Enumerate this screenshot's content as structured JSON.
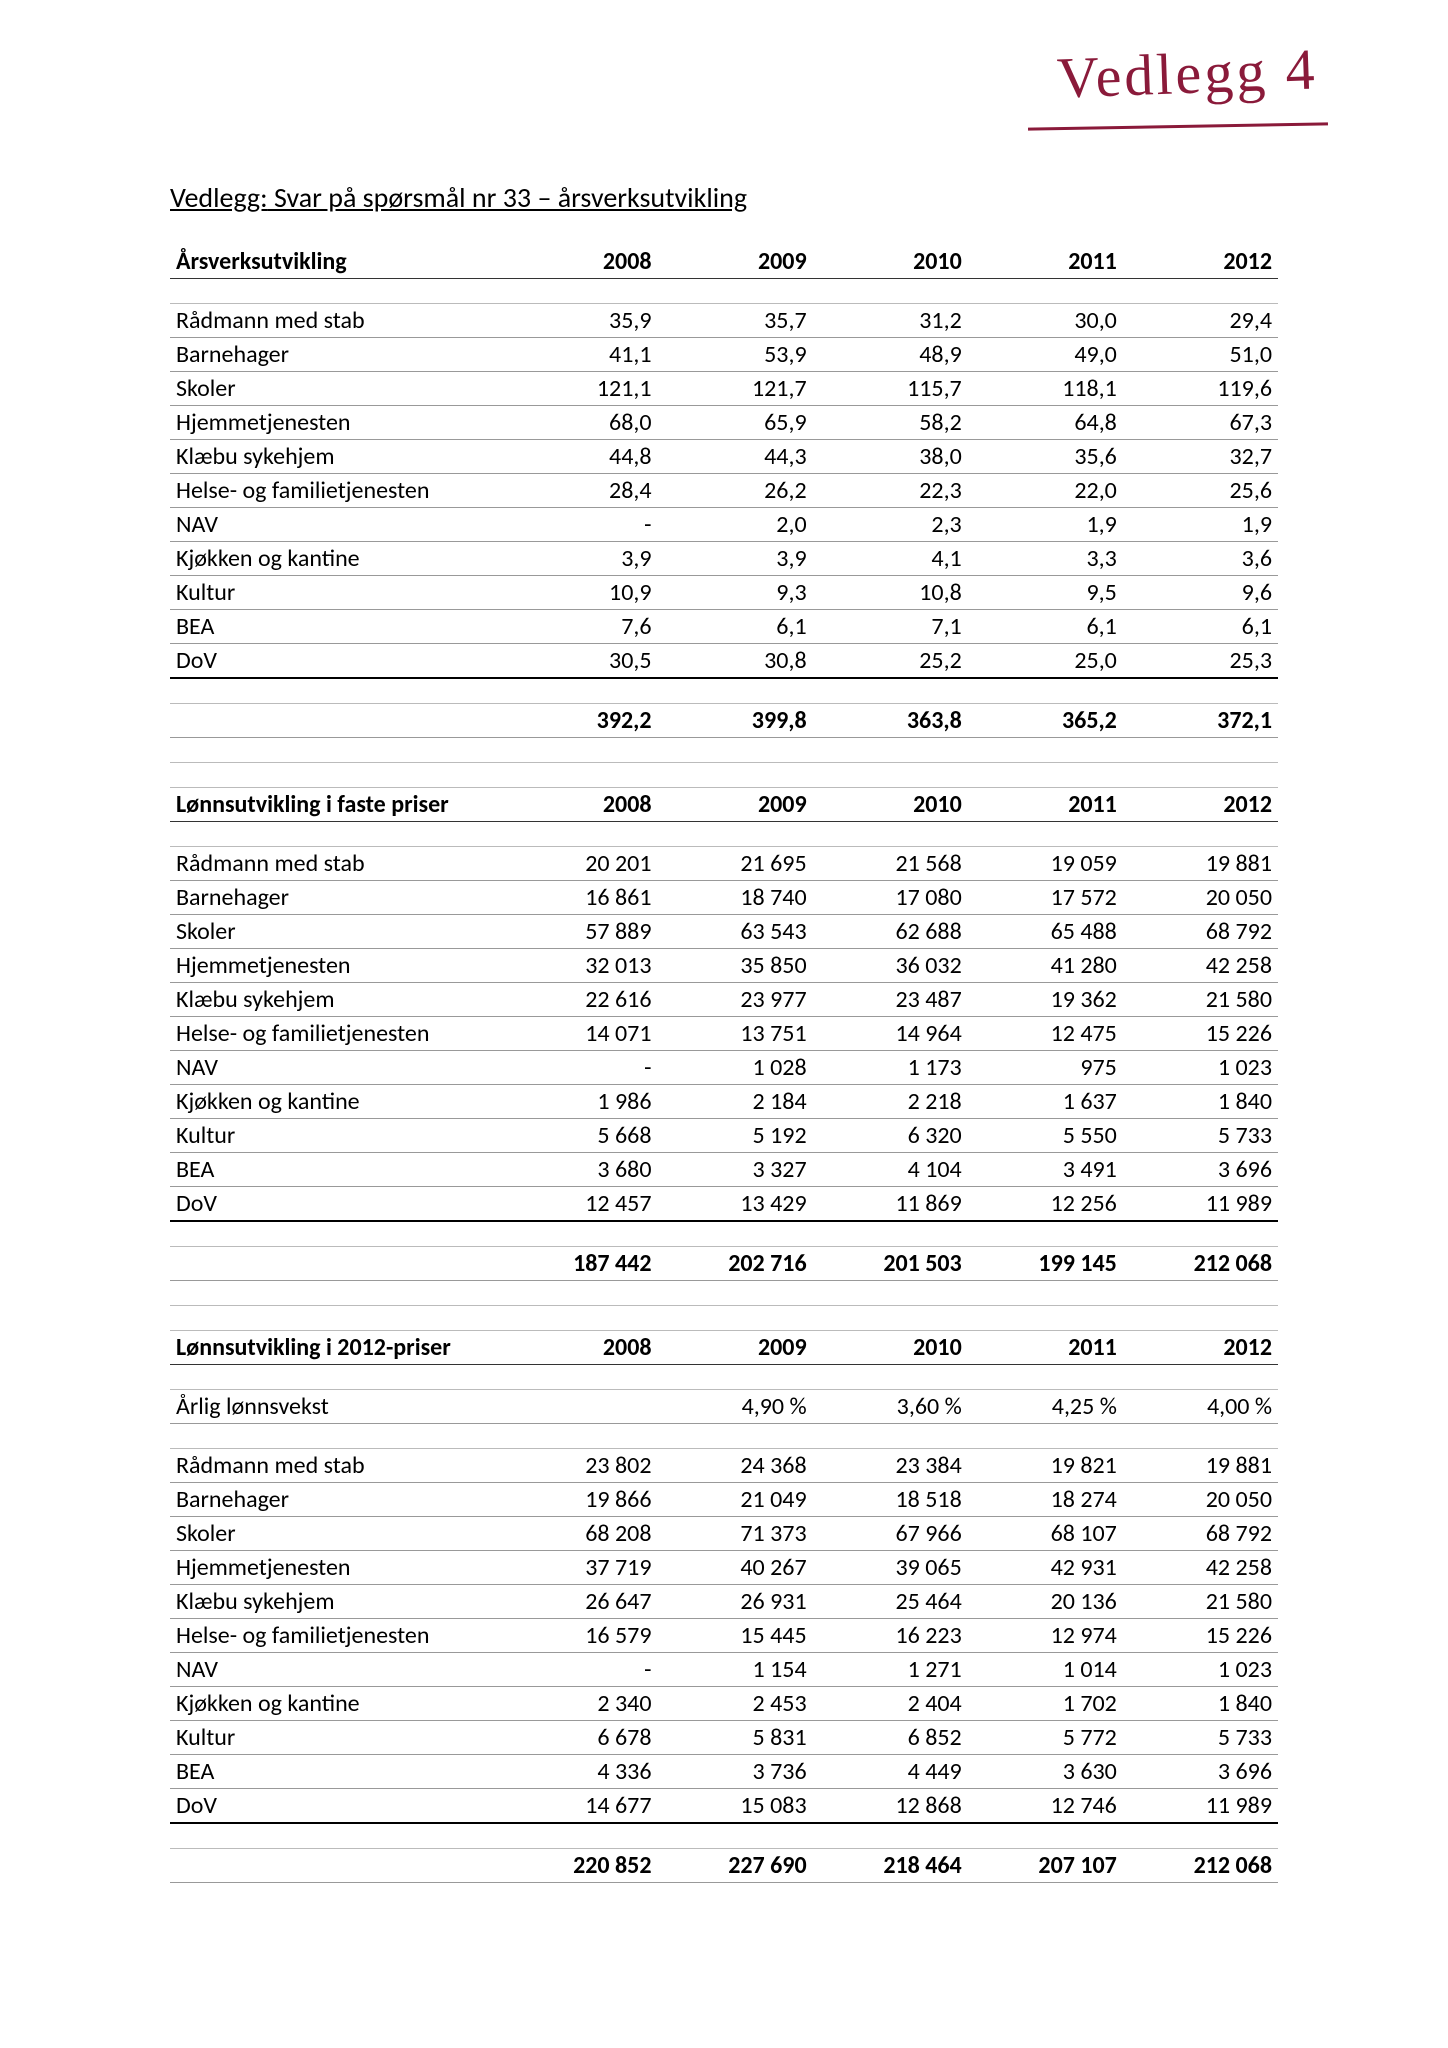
{
  "handwriting": "Vedlegg 4",
  "title_prefix": "Vedlegg:",
  "title_rest": " Svar på spørsmål nr 33 – årsverksutvikling",
  "years": [
    "2008",
    "2009",
    "2010",
    "2011",
    "2012"
  ],
  "section1": {
    "header": "Årsverksutvikling",
    "rows": [
      {
        "label": "Rådmann med stab",
        "v": [
          "35,9",
          "35,7",
          "31,2",
          "30,0",
          "29,4"
        ]
      },
      {
        "label": "Barnehager",
        "v": [
          "41,1",
          "53,9",
          "48,9",
          "49,0",
          "51,0"
        ]
      },
      {
        "label": "Skoler",
        "v": [
          "121,1",
          "121,7",
          "115,7",
          "118,1",
          "119,6"
        ]
      },
      {
        "label": "Hjemmetjenesten",
        "v": [
          "68,0",
          "65,9",
          "58,2",
          "64,8",
          "67,3"
        ]
      },
      {
        "label": "Klæbu sykehjem",
        "v": [
          "44,8",
          "44,3",
          "38,0",
          "35,6",
          "32,7"
        ]
      },
      {
        "label": "Helse- og familietjenesten",
        "v": [
          "28,4",
          "26,2",
          "22,3",
          "22,0",
          "25,6"
        ]
      },
      {
        "label": "NAV",
        "v": [
          "-",
          "2,0",
          "2,3",
          "1,9",
          "1,9"
        ]
      },
      {
        "label": "Kjøkken og kantine",
        "v": [
          "3,9",
          "3,9",
          "4,1",
          "3,3",
          "3,6"
        ]
      },
      {
        "label": "Kultur",
        "v": [
          "10,9",
          "9,3",
          "10,8",
          "9,5",
          "9,6"
        ]
      },
      {
        "label": "BEA",
        "v": [
          "7,6",
          "6,1",
          "7,1",
          "6,1",
          "6,1"
        ]
      },
      {
        "label": "DoV",
        "v": [
          "30,5",
          "30,8",
          "25,2",
          "25,0",
          "25,3"
        ]
      }
    ],
    "total": [
      "392,2",
      "399,8",
      "363,8",
      "365,2",
      "372,1"
    ]
  },
  "section2": {
    "header": "Lønnsutvikling i faste priser",
    "rows": [
      {
        "label": "Rådmann med stab",
        "v": [
          "20 201",
          "21 695",
          "21 568",
          "19 059",
          "19 881"
        ]
      },
      {
        "label": "Barnehager",
        "v": [
          "16 861",
          "18 740",
          "17 080",
          "17 572",
          "20 050"
        ]
      },
      {
        "label": "Skoler",
        "v": [
          "57 889",
          "63 543",
          "62 688",
          "65 488",
          "68 792"
        ]
      },
      {
        "label": "Hjemmetjenesten",
        "v": [
          "32 013",
          "35 850",
          "36 032",
          "41 280",
          "42 258"
        ]
      },
      {
        "label": "Klæbu sykehjem",
        "v": [
          "22 616",
          "23 977",
          "23 487",
          "19 362",
          "21 580"
        ]
      },
      {
        "label": "Helse- og familietjenesten",
        "v": [
          "14 071",
          "13 751",
          "14 964",
          "12 475",
          "15 226"
        ]
      },
      {
        "label": "NAV",
        "v": [
          "-",
          "1 028",
          "1 173",
          "975",
          "1 023"
        ]
      },
      {
        "label": "Kjøkken og kantine",
        "v": [
          "1 986",
          "2 184",
          "2 218",
          "1 637",
          "1 840"
        ]
      },
      {
        "label": "Kultur",
        "v": [
          "5 668",
          "5 192",
          "6 320",
          "5 550",
          "5 733"
        ]
      },
      {
        "label": "BEA",
        "v": [
          "3 680",
          "3 327",
          "4 104",
          "3 491",
          "3 696"
        ]
      },
      {
        "label": "DoV",
        "v": [
          "12 457",
          "13 429",
          "11 869",
          "12 256",
          "11 989"
        ]
      }
    ],
    "total": [
      "187 442",
      "202 716",
      "201 503",
      "199 145",
      "212 068"
    ]
  },
  "section3": {
    "header": "Lønnsutvikling i 2012-priser",
    "growth_label": "Årlig lønnsvekst",
    "growth": [
      "",
      "4,90 %",
      "3,60 %",
      "4,25 %",
      "4,00 %"
    ],
    "rows": [
      {
        "label": "Rådmann med stab",
        "v": [
          "23 802",
          "24 368",
          "23 384",
          "19 821",
          "19 881"
        ]
      },
      {
        "label": "Barnehager",
        "v": [
          "19 866",
          "21 049",
          "18 518",
          "18 274",
          "20 050"
        ]
      },
      {
        "label": "Skoler",
        "v": [
          "68 208",
          "71 373",
          "67 966",
          "68 107",
          "68 792"
        ]
      },
      {
        "label": "Hjemmetjenesten",
        "v": [
          "37 719",
          "40 267",
          "39 065",
          "42 931",
          "42 258"
        ]
      },
      {
        "label": "Klæbu sykehjem",
        "v": [
          "26 647",
          "26 931",
          "25 464",
          "20 136",
          "21 580"
        ]
      },
      {
        "label": "Helse- og familietjenesten",
        "v": [
          "16 579",
          "15 445",
          "16 223",
          "12 974",
          "15 226"
        ]
      },
      {
        "label": "NAV",
        "v": [
          "-",
          "1 154",
          "1 271",
          "1 014",
          "1 023"
        ]
      },
      {
        "label": "Kjøkken og kantine",
        "v": [
          "2 340",
          "2 453",
          "2 404",
          "1 702",
          "1 840"
        ]
      },
      {
        "label": "Kultur",
        "v": [
          "6 678",
          "5 831",
          "6 852",
          "5 772",
          "5 733"
        ]
      },
      {
        "label": "BEA",
        "v": [
          "4 336",
          "3 736",
          "4 449",
          "3 630",
          "3 696"
        ]
      },
      {
        "label": "DoV",
        "v": [
          "14 677",
          "15 083",
          "12 868",
          "12 746",
          "11 989"
        ]
      }
    ],
    "total": [
      "220 852",
      "227 690",
      "218 464",
      "207 107",
      "212 068"
    ]
  }
}
